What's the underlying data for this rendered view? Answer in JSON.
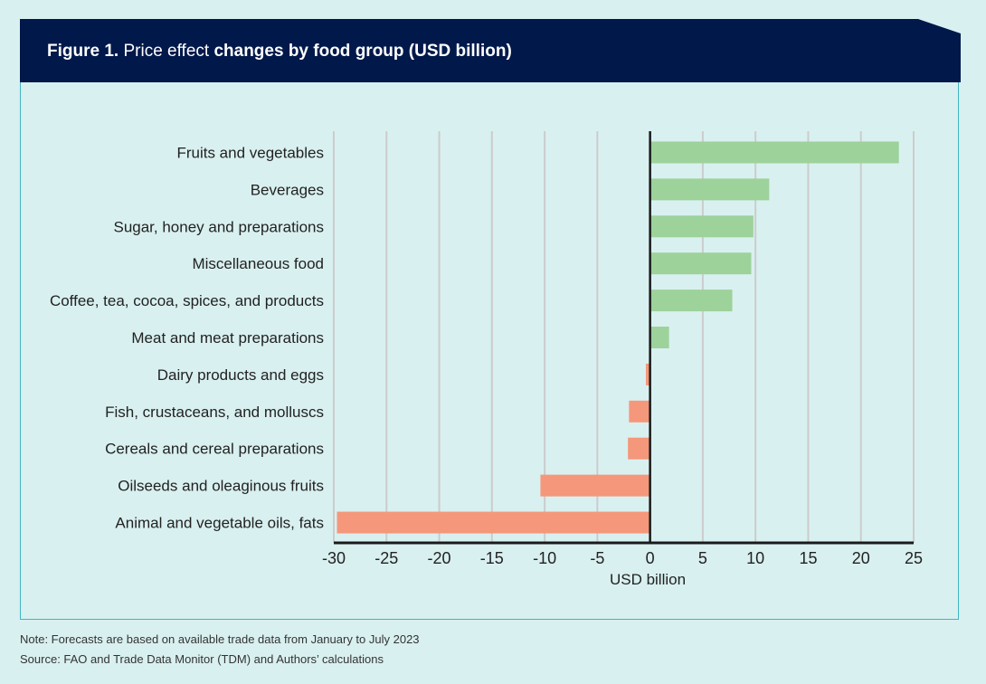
{
  "header": {
    "figure_label": "Figure 1.",
    "title_light": " Price effect ",
    "title_bold": "changes by food group (USD billion)"
  },
  "colors": {
    "header_bg": "#00184a",
    "positive": "#9dd29b",
    "negative": "#f5977a",
    "panel_border": "#3fb6c2",
    "background": "#d9f0f0"
  },
  "chart_data": {
    "type": "bar",
    "orientation": "horizontal",
    "title": "Price effect changes by food group (USD billion)",
    "xlabel": "USD billion",
    "ylabel": "",
    "xlim": [
      -30,
      25
    ],
    "xticks": [
      -30,
      -25,
      -20,
      -15,
      -10,
      -5,
      0,
      5,
      10,
      15,
      20,
      25
    ],
    "grid": true,
    "categories": [
      "Fruits and vegetables",
      "Beverages",
      "Sugar, honey and preparations",
      "Miscellaneous food",
      "Coffee, tea, cocoa, spices, and products",
      "Meat and meat preparations",
      "Dairy products and eggs",
      "Fish, crustaceans, and molluscs",
      "Cereals and cereal preparations",
      "Oilseeds and oleaginous fruits",
      "Animal and vegetable oils, fats"
    ],
    "values": [
      23.6,
      11.3,
      9.8,
      9.6,
      7.8,
      1.8,
      -0.4,
      -2.0,
      -2.1,
      -10.4,
      -29.7
    ]
  },
  "footer": {
    "note": "Note: Forecasts are based on available trade data from January to July 2023",
    "source": "Source: FAO and Trade Data Monitor (TDM)  and Authors’ calculations"
  }
}
